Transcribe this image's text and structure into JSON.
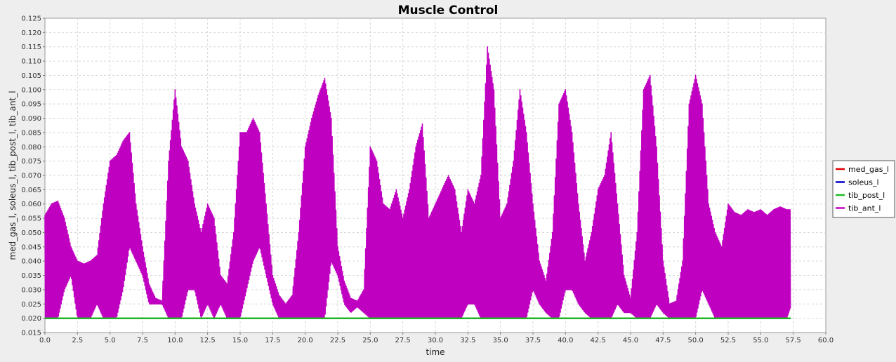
{
  "chart_data": {
    "type": "line",
    "title": "Muscle Control",
    "xlabel": "time",
    "ylabel": "med_gas_l, soleus_l, tib_post_l, tib_ant_l",
    "xlim": [
      0,
      60
    ],
    "ylim": [
      0.015,
      0.125
    ],
    "x_ticks": [
      "0.0",
      "2.5",
      "5.0",
      "7.5",
      "10.0",
      "12.5",
      "15.0",
      "17.5",
      "20.0",
      "22.5",
      "25.0",
      "27.5",
      "30.0",
      "32.5",
      "35.0",
      "37.5",
      "40.0",
      "42.5",
      "45.0",
      "47.5",
      "50.0",
      "52.5",
      "55.0",
      "57.5",
      "60.0"
    ],
    "y_ticks": [
      "0.015",
      "0.020",
      "0.025",
      "0.030",
      "0.035",
      "0.040",
      "0.045",
      "0.050",
      "0.055",
      "0.060",
      "0.065",
      "0.070",
      "0.075",
      "0.080",
      "0.085",
      "0.090",
      "0.095",
      "0.100",
      "0.105",
      "0.110",
      "0.115",
      "0.120",
      "0.125"
    ],
    "grid": true,
    "legend_position": "right",
    "series": [
      {
        "name": "med_gas_l",
        "color": "#dd0000",
        "x": [
          0,
          57.3
        ],
        "y": [
          0.02,
          0.02
        ]
      },
      {
        "name": "soleus_l",
        "color": "#0000cc",
        "x": [
          0,
          57.3
        ],
        "y": [
          0.02,
          0.02
        ]
      },
      {
        "name": "tib_post_l",
        "color": "#22bb22",
        "x": [
          0,
          57.3
        ],
        "y": [
          0.02,
          0.02
        ]
      },
      {
        "name": "tib_ant_l",
        "color": "#c000c0",
        "x": [
          0.0,
          0.5,
          1.0,
          1.5,
          2.0,
          2.5,
          3.0,
          3.5,
          4.0,
          4.5,
          5.0,
          5.5,
          6.0,
          6.5,
          7.0,
          7.5,
          8.0,
          8.5,
          9.0,
          9.5,
          10.0,
          10.5,
          11.0,
          11.5,
          12.0,
          12.5,
          13.0,
          13.5,
          14.0,
          14.5,
          15.0,
          15.5,
          16.0,
          16.5,
          17.0,
          17.5,
          18.0,
          18.5,
          19.0,
          19.5,
          20.0,
          20.5,
          21.0,
          21.5,
          22.0,
          22.5,
          23.0,
          23.5,
          24.0,
          24.5,
          25.0,
          25.5,
          26.0,
          26.5,
          27.0,
          27.5,
          28.0,
          28.5,
          29.0,
          29.5,
          30.0,
          30.5,
          31.0,
          31.5,
          32.0,
          32.5,
          33.0,
          33.5,
          34.0,
          34.5,
          35.0,
          35.5,
          36.0,
          36.5,
          37.0,
          37.5,
          38.0,
          38.5,
          39.0,
          39.5,
          40.0,
          40.5,
          41.0,
          41.5,
          42.0,
          42.5,
          43.0,
          43.5,
          44.0,
          44.5,
          45.0,
          45.5,
          46.0,
          46.5,
          47.0,
          47.5,
          48.0,
          48.5,
          49.0,
          49.5,
          50.0,
          50.5,
          51.0,
          51.5,
          52.0,
          52.5,
          53.0,
          53.5,
          54.0,
          54.5,
          55.0,
          55.5,
          56.0,
          56.5,
          57.0,
          57.3
        ],
        "y_high": [
          0.056,
          0.06,
          0.061,
          0.055,
          0.045,
          0.04,
          0.039,
          0.04,
          0.042,
          0.06,
          0.075,
          0.077,
          0.082,
          0.085,
          0.06,
          0.045,
          0.032,
          0.027,
          0.026,
          0.075,
          0.1,
          0.08,
          0.075,
          0.06,
          0.05,
          0.06,
          0.055,
          0.035,
          0.032,
          0.05,
          0.085,
          0.085,
          0.09,
          0.085,
          0.06,
          0.035,
          0.028,
          0.025,
          0.028,
          0.05,
          0.08,
          0.09,
          0.098,
          0.104,
          0.09,
          0.045,
          0.033,
          0.027,
          0.026,
          0.03,
          0.08,
          0.075,
          0.06,
          0.058,
          0.065,
          0.055,
          0.065,
          0.08,
          0.088,
          0.055,
          0.06,
          0.065,
          0.07,
          0.065,
          0.05,
          0.065,
          0.06,
          0.07,
          0.115,
          0.1,
          0.055,
          0.06,
          0.075,
          0.1,
          0.085,
          0.06,
          0.04,
          0.033,
          0.05,
          0.095,
          0.1,
          0.085,
          0.06,
          0.04,
          0.05,
          0.065,
          0.07,
          0.085,
          0.06,
          0.035,
          0.027,
          0.05,
          0.1,
          0.105,
          0.08,
          0.04,
          0.025,
          0.026,
          0.04,
          0.095,
          0.105,
          0.095,
          0.06,
          0.05,
          0.045,
          0.06,
          0.057,
          0.056,
          0.058,
          0.057,
          0.058,
          0.056,
          0.058,
          0.059,
          0.058,
          0.058
        ],
        "y_low": [
          0.02,
          0.02,
          0.02,
          0.03,
          0.035,
          0.02,
          0.02,
          0.02,
          0.025,
          0.02,
          0.02,
          0.02,
          0.03,
          0.045,
          0.04,
          0.035,
          0.025,
          0.025,
          0.025,
          0.02,
          0.02,
          0.02,
          0.03,
          0.03,
          0.02,
          0.025,
          0.02,
          0.025,
          0.02,
          0.02,
          0.02,
          0.03,
          0.04,
          0.045,
          0.035,
          0.025,
          0.02,
          0.02,
          0.02,
          0.02,
          0.02,
          0.02,
          0.02,
          0.02,
          0.04,
          0.035,
          0.025,
          0.022,
          0.024,
          0.022,
          0.02,
          0.02,
          0.02,
          0.02,
          0.02,
          0.02,
          0.02,
          0.02,
          0.02,
          0.02,
          0.02,
          0.02,
          0.02,
          0.02,
          0.02,
          0.025,
          0.025,
          0.02,
          0.02,
          0.02,
          0.02,
          0.02,
          0.02,
          0.02,
          0.02,
          0.03,
          0.025,
          0.022,
          0.02,
          0.02,
          0.03,
          0.03,
          0.025,
          0.022,
          0.02,
          0.02,
          0.02,
          0.02,
          0.025,
          0.022,
          0.022,
          0.02,
          0.02,
          0.02,
          0.025,
          0.022,
          0.02,
          0.02,
          0.02,
          0.02,
          0.02,
          0.03,
          0.025,
          0.02,
          0.02,
          0.02,
          0.02,
          0.02,
          0.02,
          0.02,
          0.02,
          0.02,
          0.02,
          0.02,
          0.02,
          0.024
        ]
      }
    ]
  }
}
